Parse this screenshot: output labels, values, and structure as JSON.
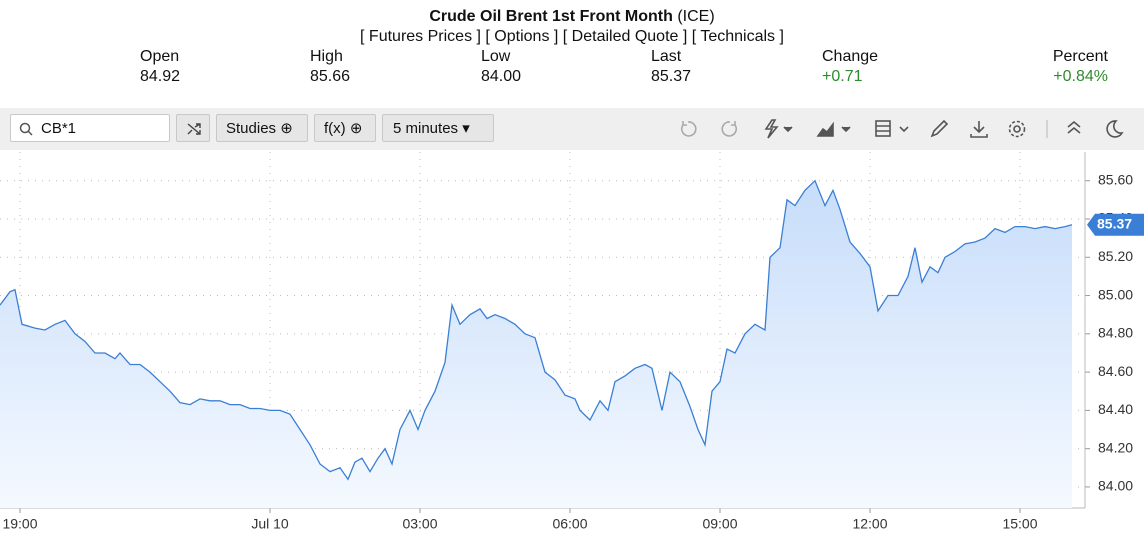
{
  "header": {
    "title": "Crude Oil Brent 1st Front Month",
    "exchange": "(ICE)",
    "links": [
      "[ Futures Prices ]",
      "[ Options ]",
      "[ Detailed Quote ]",
      "[ Technicals ]"
    ]
  },
  "quote": [
    {
      "label": "Open",
      "value": "84.92"
    },
    {
      "label": "High",
      "value": "85.66"
    },
    {
      "label": "Low",
      "value": "84.00"
    },
    {
      "label": "Last",
      "value": "85.37"
    },
    {
      "label": "Change",
      "value": "+0.71"
    },
    {
      "label": "Percent",
      "value": "+0.84%"
    }
  ],
  "toolbar": {
    "symbol": "CB*1",
    "studies": "Studies",
    "function": "f(x)",
    "interval": "5 minutes"
  },
  "chart_data": {
    "type": "line",
    "color": "#3a7fd5",
    "grid": true,
    "x": [
      18.6,
      18.8,
      18.9,
      19.04,
      19.3,
      19.5,
      19.7,
      19.9,
      20.1,
      20.3,
      20.5,
      20.7,
      20.9,
      21.0,
      21.2,
      21.4,
      21.6,
      21.8,
      22.0,
      22.2,
      22.4,
      22.6,
      22.8,
      23.0,
      23.2,
      23.4,
      23.6,
      23.8,
      24.0,
      24.2,
      24.4,
      24.6,
      24.8,
      25.0,
      25.2,
      25.4,
      25.56,
      25.7,
      25.84,
      26.0,
      26.16,
      26.3,
      26.44,
      26.6,
      26.8,
      26.96,
      27.1,
      27.3,
      27.5,
      27.64,
      27.8,
      28.0,
      28.2,
      28.34,
      28.5,
      28.7,
      28.9,
      29.1,
      29.3,
      29.5,
      29.7,
      29.9,
      30.1,
      30.2,
      30.4,
      30.6,
      30.76,
      30.9,
      31.1,
      31.3,
      31.5,
      31.64,
      31.84,
      32.0,
      32.2,
      32.4,
      32.56,
      32.7,
      32.84,
      33.0,
      33.14,
      33.3,
      33.5,
      33.7,
      33.9,
      34.0,
      34.2,
      34.34,
      34.5,
      34.7,
      34.9,
      35.1,
      35.26,
      35.4,
      35.6,
      35.8,
      36.0,
      36.16,
      36.36,
      36.56,
      36.76,
      36.9,
      37.04,
      37.2,
      37.36,
      37.5,
      37.7,
      37.9,
      38.1,
      38.3,
      38.5,
      38.7,
      38.9,
      39.1,
      39.3,
      39.5,
      39.7,
      39.9,
      40.04
    ],
    "values": [
      84.95,
      85.02,
      85.03,
      84.85,
      84.83,
      84.82,
      84.85,
      84.87,
      84.8,
      84.76,
      84.7,
      84.7,
      84.67,
      84.7,
      84.64,
      84.64,
      84.6,
      84.55,
      84.5,
      84.44,
      84.43,
      84.46,
      84.45,
      84.45,
      84.43,
      84.43,
      84.41,
      84.41,
      84.4,
      84.4,
      84.38,
      84.3,
      84.22,
      84.12,
      84.08,
      84.1,
      84.04,
      84.13,
      84.15,
      84.08,
      84.15,
      84.2,
      84.12,
      84.3,
      84.4,
      84.3,
      84.4,
      84.5,
      84.65,
      84.95,
      84.85,
      84.9,
      84.93,
      84.88,
      84.9,
      84.88,
      84.85,
      84.8,
      84.78,
      84.6,
      84.56,
      84.48,
      84.46,
      84.4,
      84.35,
      84.45,
      84.4,
      84.55,
      84.58,
      84.62,
      84.64,
      84.62,
      84.4,
      84.6,
      84.55,
      84.42,
      84.3,
      84.22,
      84.5,
      84.55,
      84.72,
      84.7,
      84.8,
      84.85,
      84.82,
      85.2,
      85.25,
      85.5,
      85.47,
      85.55,
      85.6,
      85.47,
      85.55,
      85.45,
      85.28,
      85.22,
      85.15,
      84.92,
      85.0,
      85.0,
      85.1,
      85.25,
      85.07,
      85.15,
      85.12,
      85.2,
      85.23,
      85.27,
      85.28,
      85.3,
      85.35,
      85.33,
      85.36,
      85.36,
      85.35,
      85.36,
      85.35,
      85.36,
      85.37
    ],
    "xlim": [
      18.6,
      40.3
    ],
    "ylim": [
      83.89,
      85.75
    ],
    "xticks": [
      {
        "value": 19,
        "label": "19:00"
      },
      {
        "value": 24,
        "label": "Jul 10"
      },
      {
        "value": 27,
        "label": "03:00"
      },
      {
        "value": 30,
        "label": "06:00"
      },
      {
        "value": 33,
        "label": "09:00"
      },
      {
        "value": 36,
        "label": "12:00"
      },
      {
        "value": 39,
        "label": "15:00"
      }
    ],
    "yticks": [
      {
        "value": 84,
        "label": "84.00"
      },
      {
        "value": 84.2,
        "label": "84.20"
      },
      {
        "value": 84.4,
        "label": "84.40"
      },
      {
        "value": 84.6,
        "label": "84.60"
      },
      {
        "value": 84.8,
        "label": "84.80"
      },
      {
        "value": 85,
        "label": "85.00"
      },
      {
        "value": 85.2,
        "label": "85.20"
      },
      {
        "value": 85.4,
        "label": "85.40"
      },
      {
        "value": 85.6,
        "label": "85.60"
      }
    ],
    "current_price": {
      "value": 85.37,
      "label": "85.37"
    }
  }
}
